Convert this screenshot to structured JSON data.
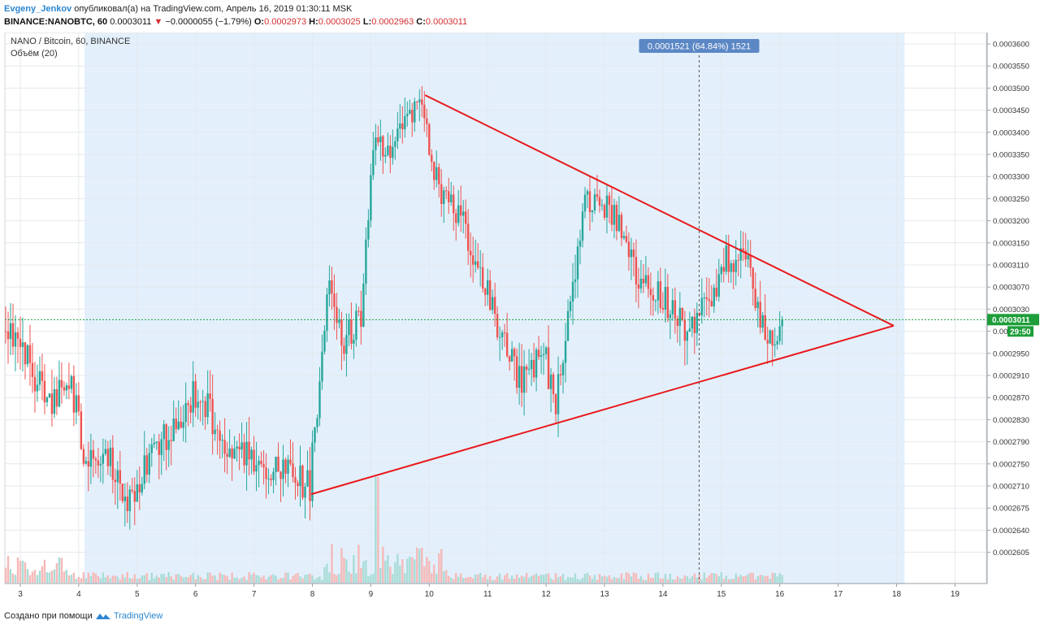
{
  "header": {
    "author": "Evgeny_Jenkov",
    "published_text": "опубликовал(а) на TradingView.com, Апрель 16, 2019 01:30:11 MSK",
    "symbol": "BINANCE:NANOBTC, 60",
    "last": "0.0003011",
    "arrow": "▼",
    "change": "−0.0000055 (−1.79%)",
    "o_label": "O:",
    "o_value": "0.0002973",
    "h_label": "H:",
    "h_value": "0.0003025",
    "l_label": "L:",
    "l_value": "0.0002963",
    "c_label": "C:",
    "c_value": "0.0003011"
  },
  "legend": {
    "title": "NANO / Bitcoin, 60, BINANCE",
    "volume": "Объём (20)"
  },
  "footer": {
    "created_with": "Создано при помощи",
    "brand": "TradingView"
  },
  "colors": {
    "up": "#26a69a",
    "down": "#ef5350",
    "trendline": "#e8191c",
    "selection_bg": "#e3f0fc",
    "price_label": "#1e9e3a",
    "measure_label": "#5b87c5"
  },
  "chart_data": {
    "type": "candlestick",
    "x_ticks": [
      "3",
      "4",
      "5",
      "6",
      "7",
      "8",
      "9",
      "10",
      "11",
      "12",
      "13",
      "14",
      "15",
      "16",
      "17",
      "18",
      "19"
    ],
    "y_ticks": [
      "0.0003600",
      "0.0003550",
      "0.0003500",
      "0.0003450",
      "0.0003400",
      "0.0003350",
      "0.0003300",
      "0.0003250",
      "0.0003200",
      "0.0003150",
      "0.0003110",
      "0.0003070",
      "0.0003030",
      "0.0002990",
      "0.0002950",
      "0.0002910",
      "0.0002870",
      "0.0002830",
      "0.0002790",
      "0.0002750",
      "0.0002710",
      "0.0002675",
      "0.0002640",
      "0.0002605"
    ],
    "last_price": "0.0003011",
    "countdown": "29:50",
    "measure_label": "0.0001521 (64.84%) 1521",
    "anchors": [
      {
        "day": 3.0,
        "price": 0.000299
      },
      {
        "day": 3.3,
        "price": 0.00029
      },
      {
        "day": 3.6,
        "price": 0.000286
      },
      {
        "day": 3.9,
        "price": 0.00029
      },
      {
        "day": 4.15,
        "price": 0.000276
      },
      {
        "day": 4.5,
        "price": 0.000277
      },
      {
        "day": 4.9,
        "price": 0.000268
      },
      {
        "day": 5.3,
        "price": 0.000277
      },
      {
        "day": 5.7,
        "price": 0.000282
      },
      {
        "day": 6.1,
        "price": 0.000289
      },
      {
        "day": 6.5,
        "price": 0.000279
      },
      {
        "day": 7.0,
        "price": 0.000276
      },
      {
        "day": 7.5,
        "price": 0.000274
      },
      {
        "day": 8.0,
        "price": 0.000271
      },
      {
        "day": 8.3,
        "price": 0.000307
      },
      {
        "day": 8.6,
        "price": 0.000297
      },
      {
        "day": 8.9,
        "price": 0.000303
      },
      {
        "day": 9.1,
        "price": 0.000338
      },
      {
        "day": 9.4,
        "price": 0.000337
      },
      {
        "day": 9.7,
        "price": 0.000343
      },
      {
        "day": 9.9,
        "price": 0.000346
      },
      {
        "day": 10.2,
        "price": 0.000327
      },
      {
        "day": 10.6,
        "price": 0.00032
      },
      {
        "day": 11.0,
        "price": 0.000307
      },
      {
        "day": 11.3,
        "price": 0.000298
      },
      {
        "day": 11.6,
        "price": 0.00029
      },
      {
        "day": 12.0,
        "price": 0.000295
      },
      {
        "day": 12.2,
        "price": 0.000286
      },
      {
        "day": 12.5,
        "price": 0.000305
      },
      {
        "day": 12.7,
        "price": 0.000325
      },
      {
        "day": 13.0,
        "price": 0.000324
      },
      {
        "day": 13.3,
        "price": 0.00032
      },
      {
        "day": 13.6,
        "price": 0.000308
      },
      {
        "day": 14.0,
        "price": 0.000306
      },
      {
        "day": 14.4,
        "price": 0.0003
      },
      {
        "day": 14.8,
        "price": 0.000303
      },
      {
        "day": 15.1,
        "price": 0.000312
      },
      {
        "day": 15.4,
        "price": 0.000313
      },
      {
        "day": 15.6,
        "price": 0.000307
      },
      {
        "day": 15.85,
        "price": 0.000296
      },
      {
        "day": 16.05,
        "price": 0.0003011
      }
    ],
    "trendlines": [
      {
        "name": "upper",
        "from": {
          "day": 9.93,
          "price": 0.0003484
        },
        "to": {
          "day": 17.95,
          "price": 0.0003
        }
      },
      {
        "name": "lower",
        "from": {
          "day": 7.98,
          "price": 0.0002697
        },
        "to": {
          "day": 17.95,
          "price": 0.0003
        }
      }
    ],
    "selection_range": {
      "from_day": 4.1,
      "to_day": 16.05
    },
    "crosshair_day": 14.62,
    "volume": {
      "max": 1.0
    }
  }
}
